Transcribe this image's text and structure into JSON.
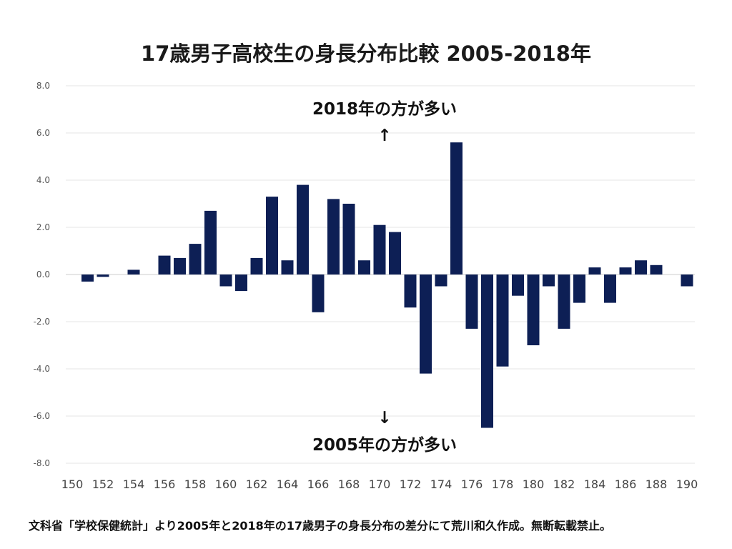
{
  "title": "17歳男子高校生の身長分布比較 2005-2018年",
  "footer": "文科省「学校保健統計」より2005年と2018年の17歳男子の身長分布の差分にて荒川和久作成。無断転載禁止。",
  "annotations": {
    "up_text": "2018年の方が多い",
    "up_arrow": "↑",
    "down_arrow": "↓",
    "down_text": "2005年の方が多い"
  },
  "colors": {
    "bar": "#0d1f55",
    "grid": "#e6e6e6",
    "zero": "#cccccc"
  },
  "chart_data": {
    "type": "bar",
    "title": "17歳男子高校生の身長分布比較 2005-2018年",
    "categories": [
      150,
      151,
      152,
      153,
      154,
      155,
      156,
      157,
      158,
      159,
      160,
      161,
      162,
      163,
      164,
      165,
      166,
      167,
      168,
      169,
      170,
      171,
      172,
      173,
      174,
      175,
      176,
      177,
      178,
      179,
      180,
      181,
      182,
      183,
      184,
      185,
      186,
      187,
      188,
      189,
      190
    ],
    "values": [
      0,
      -0.3,
      -0.1,
      0,
      0.2,
      0,
      0.8,
      0.7,
      1.3,
      2.7,
      -0.5,
      -0.7,
      0.7,
      3.3,
      0.6,
      3.8,
      -1.6,
      3.2,
      3.0,
      0.6,
      2.1,
      1.8,
      -1.4,
      -4.2,
      -0.5,
      5.6,
      -2.3,
      -6.5,
      -3.9,
      -0.9,
      -3.0,
      -0.5,
      -2.3,
      -1.2,
      0.3,
      -1.2,
      0.3,
      0.6,
      0.4,
      0,
      -0.5
    ],
    "x_tick_labels": [
      "150",
      "152",
      "154",
      "156",
      "158",
      "160",
      "162",
      "164",
      "166",
      "168",
      "170",
      "172",
      "174",
      "176",
      "178",
      "180",
      "182",
      "184",
      "186",
      "188",
      "190"
    ],
    "y_tick_labels": [
      "8.0",
      "6.0",
      "4.0",
      "2.0",
      "0.0",
      "-2.0",
      "-4.0",
      "-6.0",
      "-8.0"
    ],
    "ylim": [
      -8,
      8
    ],
    "grid": true,
    "legend": "none"
  }
}
